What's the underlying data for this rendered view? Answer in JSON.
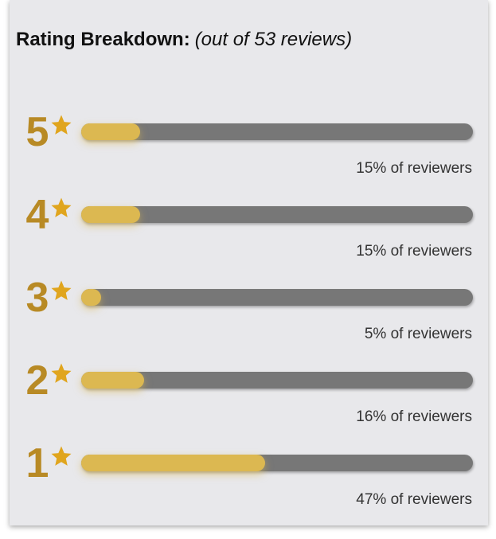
{
  "header": {
    "title": "Rating Breakdown:",
    "subtitle": "(out of 53 reviews)"
  },
  "colors": {
    "number": "#b88a25",
    "star": "#e0a51e",
    "fill": "#dcb851",
    "track": "#777777"
  },
  "ratings": [
    {
      "stars": "5",
      "percent": 15,
      "label": "15% of reviewers",
      "icon": "star-icon"
    },
    {
      "stars": "4",
      "percent": 15,
      "label": "15% of reviewers",
      "icon": "star-icon"
    },
    {
      "stars": "3",
      "percent": 5,
      "label": "5% of reviewers",
      "icon": "star-icon"
    },
    {
      "stars": "2",
      "percent": 16,
      "label": "16% of reviewers",
      "icon": "star-icon"
    },
    {
      "stars": "1",
      "percent": 47,
      "label": "47% of reviewers",
      "icon": "star-icon"
    }
  ]
}
